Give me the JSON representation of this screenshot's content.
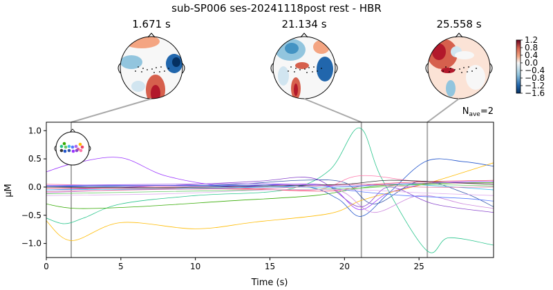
{
  "title": "sub-SP006 ses-20241118post rest - HBR",
  "topo_times": [
    "1.671 s",
    "21.134 s",
    "25.558 s"
  ],
  "nave": {
    "main": "N",
    "sub": "ave",
    "value": "=2"
  },
  "colorbar": {
    "ticks": [
      "1.2",
      "0.8",
      "0.4",
      "0.0",
      "−0.4",
      "−0.8",
      "−1.2",
      "−1.6"
    ],
    "tick_values": [
      1.2,
      0.8,
      0.4,
      0.0,
      -0.4,
      -0.8,
      -1.2,
      -1.6
    ],
    "range": [
      -1.6,
      1.2
    ],
    "colormap": "RdBu_r"
  },
  "chart_data": {
    "type": "line",
    "xlabel": "Time (s)",
    "ylabel": "µM",
    "xlim": [
      0,
      30
    ],
    "ylim": [
      -1.25,
      1.15
    ],
    "x_ticks": [
      0,
      5,
      10,
      15,
      20,
      25
    ],
    "x_tick_labels": [
      "0",
      "5",
      "10",
      "15",
      "20",
      "25"
    ],
    "y_ticks": [
      1.0,
      0.5,
      0.0,
      -0.5,
      -1.0
    ],
    "y_tick_labels": [
      "1.0",
      "0.5",
      "0.0",
      "−0.5",
      "−1.0"
    ],
    "time_markers": [
      1.671,
      21.134,
      25.558
    ],
    "grid": false,
    "series": [
      {
        "color": "#9a33ff",
        "x": [
          0,
          2,
          5,
          8,
          12,
          16,
          19,
          21,
          23,
          26,
          30
        ],
        "y": [
          0.27,
          0.43,
          0.52,
          0.2,
          0.02,
          0.05,
          0.01,
          -0.4,
          -0.1,
          0.07,
          0.1
        ]
      },
      {
        "color": "#ffbb00",
        "x": [
          0,
          1.7,
          5,
          10,
          14,
          19,
          21,
          23,
          26,
          30
        ],
        "y": [
          -0.6,
          -0.95,
          -0.63,
          -0.74,
          -0.62,
          -0.47,
          -0.25,
          -0.1,
          0.1,
          0.43
        ]
      },
      {
        "color": "#26c48a",
        "x": [
          0,
          1.2,
          2.5,
          5,
          10,
          16,
          19,
          21,
          22.5,
          25.5,
          27,
          30
        ],
        "y": [
          -0.55,
          -0.65,
          -0.55,
          -0.3,
          -0.15,
          -0.05,
          0.3,
          1.05,
          0.15,
          -1.12,
          -0.9,
          -1.03
        ]
      },
      {
        "color": "#33aa00",
        "x": [
          0,
          2,
          6,
          12,
          18,
          21,
          24,
          30
        ],
        "y": [
          -0.3,
          -0.38,
          -0.35,
          -0.25,
          -0.15,
          -0.02,
          0.05,
          0.08
        ]
      },
      {
        "color": "#2255cc",
        "x": [
          0,
          4,
          10,
          17,
          19.5,
          21.1,
          23,
          25.5,
          28,
          30
        ],
        "y": [
          0.02,
          0.01,
          0.02,
          0.02,
          -0.2,
          -0.52,
          -0.1,
          0.46,
          0.45,
          0.37
        ]
      },
      {
        "color": "#3355aa",
        "x": [
          0,
          5,
          12,
          17,
          20,
          22,
          25,
          28,
          30
        ],
        "y": [
          0.0,
          0.02,
          0.04,
          0.12,
          0.08,
          -0.3,
          0.1,
          -0.1,
          -0.35
        ]
      },
      {
        "color": "#cc88dd",
        "x": [
          0,
          5,
          12,
          18,
          20,
          22,
          25,
          28,
          30
        ],
        "y": [
          -0.1,
          -0.05,
          -0.02,
          0.05,
          -0.1,
          -0.45,
          -0.15,
          -0.3,
          -0.38
        ]
      },
      {
        "color": "#8844cc",
        "x": [
          0,
          6,
          14,
          18,
          21,
          23,
          26,
          30
        ],
        "y": [
          -0.05,
          0.0,
          0.1,
          0.15,
          -0.35,
          0.0,
          -0.3,
          -0.45
        ]
      },
      {
        "color": "#ff77aa",
        "x": [
          0,
          6,
          12,
          18,
          21,
          25,
          30
        ],
        "y": [
          0.05,
          0.02,
          0.0,
          -0.05,
          0.2,
          0.1,
          0.05
        ]
      },
      {
        "color": "#ee4466",
        "x": [
          0,
          8,
          14,
          19,
          22,
          26,
          30
        ],
        "y": [
          -0.02,
          -0.02,
          -0.04,
          -0.07,
          0.05,
          0.1,
          0.12
        ]
      },
      {
        "color": "#5577ff",
        "x": [
          0,
          8,
          15,
          18,
          20,
          24,
          28,
          30
        ],
        "y": [
          0.02,
          0.03,
          0.0,
          0.04,
          -0.05,
          -0.15,
          -0.2,
          -0.25
        ]
      },
      {
        "color": "#333333",
        "x": [
          0,
          8,
          15,
          20,
          23,
          27,
          30
        ],
        "y": [
          0.0,
          -0.01,
          0.02,
          0.05,
          0.12,
          0.08,
          0.05
        ]
      },
      {
        "color": "#44bbee",
        "x": [
          0,
          8,
          15,
          20,
          24,
          30
        ],
        "y": [
          -0.05,
          -0.03,
          0.0,
          0.0,
          0.05,
          -0.05
        ]
      },
      {
        "color": "#aa66ee",
        "x": [
          0,
          8,
          15,
          20,
          24,
          30
        ],
        "y": [
          0.03,
          0.05,
          0.06,
          0.02,
          0.06,
          0.1
        ]
      },
      {
        "color": "#66cc66",
        "x": [
          0,
          8,
          15,
          21,
          25,
          30
        ],
        "y": [
          -0.12,
          -0.08,
          -0.05,
          -0.02,
          0.04,
          0.02
        ]
      },
      {
        "color": "#ddaaee",
        "x": [
          0,
          8,
          15,
          21,
          25,
          30
        ],
        "y": [
          -0.15,
          -0.12,
          -0.05,
          -0.05,
          -0.1,
          -0.15
        ]
      },
      {
        "color": "#dd6699",
        "x": [
          0,
          8,
          15,
          21,
          25,
          30
        ],
        "y": [
          -0.08,
          -0.04,
          -0.02,
          0.05,
          0.0,
          0.0
        ]
      }
    ]
  }
}
